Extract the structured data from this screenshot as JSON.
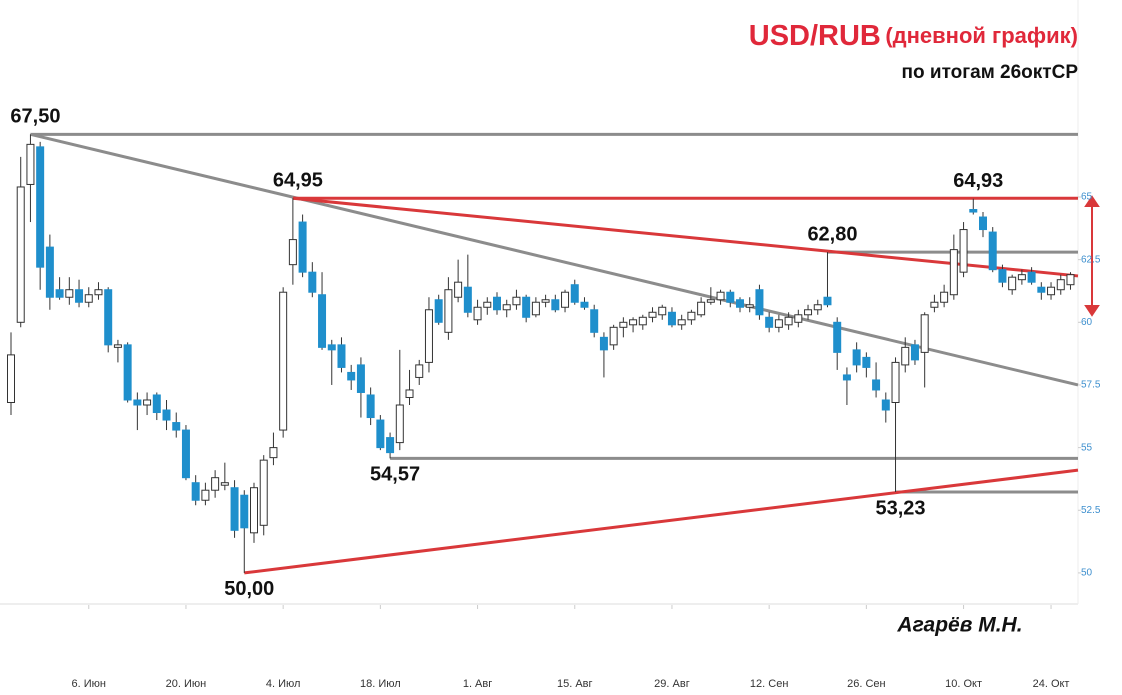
{
  "chart_data": {
    "type": "candlestick",
    "title": "USD/RUB",
    "title_suffix": "(дневной график)",
    "subtitle": "по итогам 26октСР",
    "author": "Агарёв М.Н.",
    "categories": [
      null,
      null,
      null,
      null,
      null,
      null,
      null,
      null,
      "6. Июн",
      null,
      null,
      null,
      null,
      null,
      null,
      null,
      null,
      null,
      "20. Июн",
      null,
      null,
      null,
      null,
      null,
      null,
      null,
      null,
      null,
      "4. Июл",
      null,
      null,
      null,
      null,
      null,
      null,
      null,
      null,
      null,
      "18. Июл",
      null,
      null,
      null,
      null,
      null,
      null,
      null,
      null,
      null,
      "1. Авг",
      null,
      null,
      null,
      null,
      null,
      null,
      null,
      null,
      null,
      "15. Авг",
      null,
      null,
      null,
      null,
      null,
      null,
      null,
      null,
      null,
      "29. Авг",
      null,
      null,
      null,
      null,
      null,
      null,
      null,
      null,
      null,
      "12. Сен",
      null,
      null,
      null,
      null,
      null,
      null,
      null,
      null,
      null,
      "26. Сен",
      null,
      null,
      null,
      null,
      null,
      null,
      null,
      null,
      null,
      "10. Окт",
      null,
      null,
      null,
      null,
      null,
      null,
      null,
      null,
      "24. Окт",
      null,
      null
    ],
    "ohlc": [
      [
        56.8,
        59.6,
        56.3,
        58.7
      ],
      [
        60.0,
        66.6,
        59.8,
        65.4
      ],
      [
        65.5,
        67.5,
        64.0,
        67.1
      ],
      [
        67.0,
        67.2,
        61.3,
        62.2
      ],
      [
        63.0,
        63.5,
        60.5,
        61.0
      ],
      [
        61.3,
        61.8,
        60.9,
        61.0
      ],
      [
        61.0,
        61.8,
        60.7,
        61.3
      ],
      [
        61.3,
        61.7,
        60.6,
        60.8
      ],
      [
        60.8,
        61.4,
        60.6,
        61.1
      ],
      [
        61.1,
        61.6,
        60.9,
        61.3
      ],
      [
        61.3,
        61.4,
        58.8,
        59.1
      ],
      [
        59.0,
        59.3,
        58.4,
        59.1
      ],
      [
        59.1,
        59.2,
        56.8,
        56.9
      ],
      [
        56.9,
        57.2,
        55.7,
        56.7
      ],
      [
        56.7,
        57.2,
        56.3,
        56.9
      ],
      [
        57.1,
        57.2,
        56.1,
        56.4
      ],
      [
        56.5,
        56.9,
        55.7,
        56.1
      ],
      [
        56.0,
        56.4,
        55.4,
        55.7
      ],
      [
        55.7,
        55.9,
        53.7,
        53.8
      ],
      [
        53.6,
        53.9,
        52.7,
        52.9
      ],
      [
        52.9,
        53.6,
        52.7,
        53.3
      ],
      [
        53.3,
        54.1,
        53.0,
        53.8
      ],
      [
        53.5,
        54.4,
        53.3,
        53.6
      ],
      [
        53.4,
        53.7,
        51.4,
        51.7
      ],
      [
        53.1,
        53.3,
        50.0,
        51.8
      ],
      [
        51.6,
        53.6,
        51.2,
        53.4
      ],
      [
        51.9,
        54.7,
        51.5,
        54.5
      ],
      [
        54.6,
        55.6,
        54.3,
        55.0
      ],
      [
        55.7,
        61.4,
        55.4,
        61.2
      ],
      [
        62.3,
        64.95,
        61.5,
        63.3
      ],
      [
        64.0,
        64.3,
        61.8,
        62.0
      ],
      [
        62.0,
        62.4,
        61.0,
        61.2
      ],
      [
        61.1,
        62.0,
        58.9,
        59.0
      ],
      [
        59.1,
        59.3,
        57.5,
        58.9
      ],
      [
        59.1,
        59.4,
        58.0,
        58.2
      ],
      [
        58.0,
        58.3,
        57.3,
        57.7
      ],
      [
        58.3,
        58.6,
        56.2,
        57.2
      ],
      [
        57.1,
        57.4,
        55.9,
        56.2
      ],
      [
        56.1,
        56.3,
        54.9,
        55.0
      ],
      [
        55.4,
        55.6,
        54.57,
        54.8
      ],
      [
        55.2,
        58.9,
        54.9,
        56.7
      ],
      [
        57.0,
        58.1,
        56.7,
        57.3
      ],
      [
        57.8,
        58.5,
        57.5,
        58.3
      ],
      [
        58.4,
        61.0,
        58.0,
        60.5
      ],
      [
        60.9,
        61.1,
        59.9,
        60.0
      ],
      [
        59.6,
        61.8,
        59.3,
        61.3
      ],
      [
        61.0,
        62.5,
        60.8,
        61.6
      ],
      [
        61.4,
        62.7,
        60.2,
        60.4
      ],
      [
        60.1,
        60.9,
        59.9,
        60.6
      ],
      [
        60.6,
        61.0,
        60.3,
        60.8
      ],
      [
        61.0,
        61.2,
        60.3,
        60.5
      ],
      [
        60.5,
        60.9,
        60.2,
        60.7
      ],
      [
        60.7,
        61.3,
        60.5,
        61.0
      ],
      [
        61.0,
        61.1,
        60.0,
        60.2
      ],
      [
        60.3,
        61.0,
        60.2,
        60.8
      ],
      [
        60.8,
        61.1,
        60.6,
        60.9
      ],
      [
        60.9,
        61.1,
        60.4,
        60.5
      ],
      [
        60.6,
        61.3,
        60.4,
        61.2
      ],
      [
        61.5,
        61.7,
        60.7,
        60.8
      ],
      [
        60.8,
        61.0,
        60.5,
        60.6
      ],
      [
        60.5,
        60.7,
        59.4,
        59.6
      ],
      [
        59.4,
        59.6,
        57.8,
        58.9
      ],
      [
        59.1,
        59.9,
        58.9,
        59.8
      ],
      [
        59.8,
        60.2,
        59.4,
        60.0
      ],
      [
        59.9,
        60.2,
        59.6,
        60.1
      ],
      [
        59.9,
        60.3,
        59.7,
        60.2
      ],
      [
        60.2,
        60.6,
        60.0,
        60.4
      ],
      [
        60.3,
        60.7,
        60.1,
        60.6
      ],
      [
        60.4,
        60.6,
        59.8,
        59.9
      ],
      [
        59.9,
        60.3,
        59.7,
        60.1
      ],
      [
        60.1,
        60.5,
        59.9,
        60.4
      ],
      [
        60.3,
        61.0,
        60.2,
        60.8
      ],
      [
        60.8,
        61.4,
        60.7,
        60.9
      ],
      [
        60.9,
        61.3,
        60.7,
        61.2
      ],
      [
        61.2,
        61.3,
        60.6,
        60.8
      ],
      [
        60.9,
        61.0,
        60.4,
        60.6
      ],
      [
        60.6,
        61.0,
        60.4,
        60.7
      ],
      [
        61.3,
        61.5,
        60.1,
        60.3
      ],
      [
        60.2,
        60.4,
        59.6,
        59.8
      ],
      [
        59.8,
        60.3,
        59.6,
        60.1
      ],
      [
        59.9,
        60.4,
        59.7,
        60.2
      ],
      [
        60.0,
        60.5,
        59.8,
        60.3
      ],
      [
        60.3,
        60.7,
        60.1,
        60.5
      ],
      [
        60.5,
        60.9,
        60.3,
        60.7
      ],
      [
        61.0,
        62.8,
        60.6,
        60.7
      ],
      [
        60.0,
        60.2,
        58.1,
        58.8
      ],
      [
        57.9,
        58.2,
        56.7,
        57.7
      ],
      [
        58.9,
        59.2,
        58.0,
        58.3
      ],
      [
        58.6,
        58.8,
        57.8,
        58.2
      ],
      [
        57.7,
        58.4,
        57.0,
        57.3
      ],
      [
        56.9,
        57.2,
        56.0,
        56.5
      ],
      [
        56.8,
        58.6,
        53.23,
        58.4
      ],
      [
        58.3,
        59.4,
        58.0,
        59.0
      ],
      [
        59.1,
        59.3,
        58.3,
        58.5
      ],
      [
        58.8,
        60.4,
        57.4,
        60.3
      ],
      [
        60.6,
        61.1,
        60.4,
        60.8
      ],
      [
        60.8,
        61.5,
        60.6,
        61.2
      ],
      [
        61.1,
        63.5,
        60.9,
        62.9
      ],
      [
        62.0,
        64.0,
        61.8,
        63.7
      ],
      [
        64.5,
        64.93,
        64.3,
        64.4
      ],
      [
        64.2,
        64.4,
        63.4,
        63.7
      ],
      [
        63.6,
        63.8,
        62.0,
        62.1
      ],
      [
        62.1,
        62.3,
        61.4,
        61.6
      ],
      [
        61.3,
        61.9,
        61.1,
        61.8
      ],
      [
        61.7,
        62.1,
        61.5,
        61.9
      ],
      [
        62.0,
        62.2,
        61.5,
        61.6
      ],
      [
        61.4,
        61.6,
        60.9,
        61.2
      ],
      [
        61.1,
        61.6,
        60.9,
        61.4
      ],
      [
        61.3,
        61.9,
        61.1,
        61.7
      ],
      [
        61.5,
        62.0,
        61.3,
        61.9
      ]
    ],
    "up_color": "#ffffff",
    "down_color": "#1f8fcc",
    "ylim": [
      48.72,
      72.86
    ],
    "yticks": [
      50,
      52.5,
      55,
      57.5,
      60,
      62.5,
      65
    ],
    "lines": [
      {
        "color": "#8c8c8c",
        "start": 2,
        "values": [
          67.5,
          67.5
        ]
      },
      {
        "color": "#8c8c8c",
        "start": 2,
        "values": [
          67.5,
          57.5
        ]
      },
      {
        "color": "#8c8c8c",
        "start": 39,
        "values": [
          54.57,
          54.57
        ]
      },
      {
        "color": "#8c8c8c",
        "start": 91,
        "values": [
          53.23,
          53.23
        ]
      },
      {
        "color": "#8c8c8c",
        "start": 84,
        "values": [
          62.8,
          62.8
        ]
      },
      {
        "color": "#d9383a",
        "start": 29,
        "values": [
          64.95,
          64.95
        ]
      },
      {
        "color": "#d9383a",
        "start": 29,
        "values": [
          64.95,
          61.85
        ]
      },
      {
        "color": "#d9383a",
        "start": 24,
        "values": [
          50.0,
          54.1
        ]
      }
    ],
    "annotations": [
      {
        "index": 2,
        "value": 67.5,
        "label": "67,50"
      },
      {
        "index": 29,
        "value": 64.95,
        "label": "64,95"
      },
      {
        "index": 84,
        "value": 62.8,
        "label": "62,80"
      },
      {
        "index": 99,
        "value": 64.93,
        "label": "64,93"
      },
      {
        "index": 39,
        "value": 54.57,
        "label": "54,57"
      },
      {
        "index": 91,
        "value": 53.23,
        "label": "53,23"
      },
      {
        "index": 24,
        "value": 50.0,
        "label": "50,00"
      }
    ]
  }
}
